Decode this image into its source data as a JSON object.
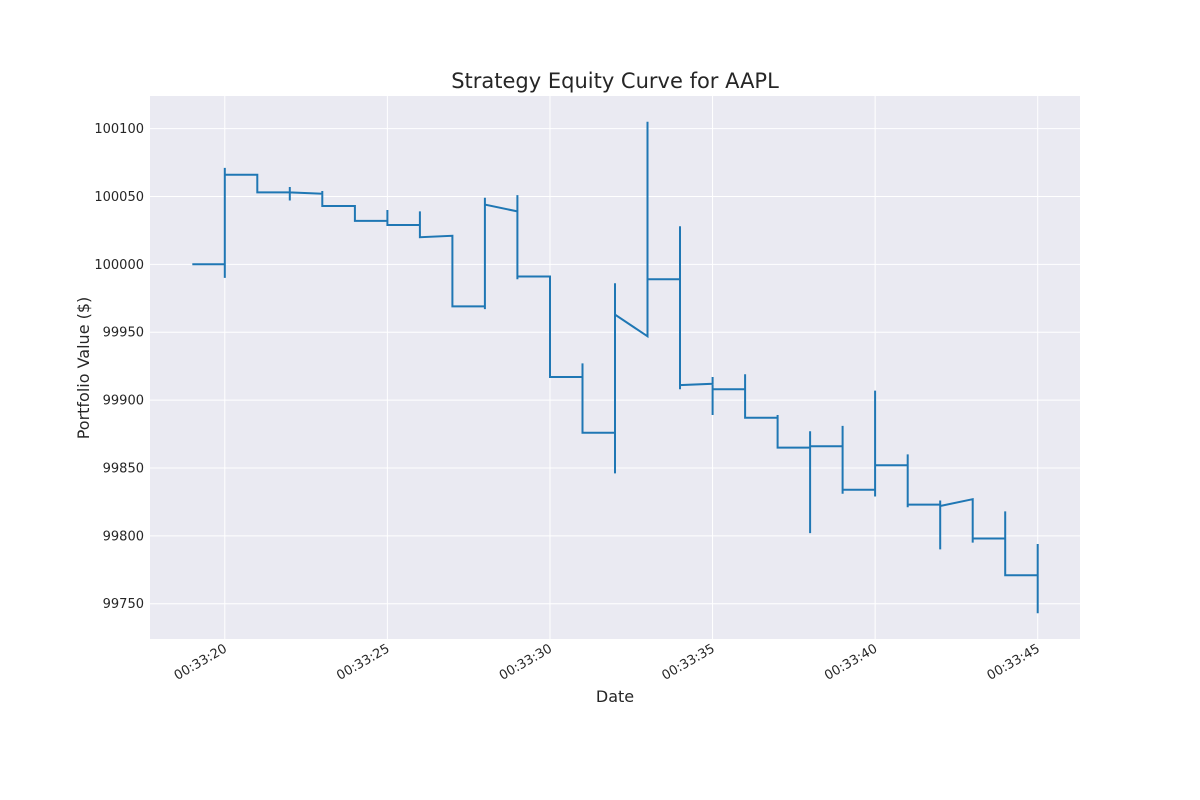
{
  "chart_data": {
    "type": "line",
    "title": "Strategy Equity Curve for AAPL",
    "xlabel": "Date",
    "ylabel": "Portfolio Value ($)",
    "x_tick_labels": [
      "00:33:20",
      "00:33:25",
      "00:33:30",
      "00:33:35",
      "00:33:40",
      "00:33:45"
    ],
    "y_tick_labels": [
      "100100",
      "100050",
      "100000",
      "99950",
      "99900",
      "99850",
      "99800",
      "99750"
    ],
    "y_ticks": [
      100100,
      100050,
      100000,
      99950,
      99900,
      99850,
      99800,
      99750
    ],
    "x_ticks": [
      "00:33:20",
      "00:33:25",
      "00:33:30",
      "00:33:35",
      "00:33:40",
      "00:33:45"
    ],
    "xlim": [
      "00:33:17.7",
      "00:33:46.3"
    ],
    "ylim": [
      99724,
      100124
    ],
    "grid": true,
    "legend": "none",
    "series": [
      {
        "color": "#1f77b4",
        "points": [
          [
            "00:33:19",
            100000
          ],
          [
            "00:33:20",
            100000
          ],
          [
            "00:33:20",
            99990
          ],
          [
            "00:33:20",
            100071
          ],
          [
            "00:33:20",
            100066
          ],
          [
            "00:33:21",
            100066
          ],
          [
            "00:33:21",
            100053
          ],
          [
            "00:33:22",
            100053
          ],
          [
            "00:33:22",
            100047
          ],
          [
            "00:33:22",
            100057
          ],
          [
            "00:33:22",
            100053
          ],
          [
            "00:33:23",
            100052
          ],
          [
            "00:33:23",
            100054
          ],
          [
            "00:33:23",
            100043
          ],
          [
            "00:33:24",
            100043
          ],
          [
            "00:33:24",
            100032
          ],
          [
            "00:33:25",
            100032
          ],
          [
            "00:33:25",
            100040
          ],
          [
            "00:33:25",
            100029
          ],
          [
            "00:33:26",
            100029
          ],
          [
            "00:33:26",
            100039
          ],
          [
            "00:33:26",
            100020
          ],
          [
            "00:33:27",
            100021
          ],
          [
            "00:33:27",
            99969
          ],
          [
            "00:33:28",
            99969
          ],
          [
            "00:33:28",
            99967
          ],
          [
            "00:33:28",
            100049
          ],
          [
            "00:33:28",
            100044
          ],
          [
            "00:33:29",
            100039
          ],
          [
            "00:33:29",
            100051
          ],
          [
            "00:33:29",
            99989
          ],
          [
            "00:33:29",
            99991
          ],
          [
            "00:33:30",
            99991
          ],
          [
            "00:33:30",
            99917
          ],
          [
            "00:33:31",
            99917
          ],
          [
            "00:33:31",
            99927
          ],
          [
            "00:33:31",
            99876
          ],
          [
            "00:33:32",
            99876
          ],
          [
            "00:33:32",
            99846
          ],
          [
            "00:33:32",
            99986
          ],
          [
            "00:33:32",
            99963
          ],
          [
            "00:33:33",
            99947
          ],
          [
            "00:33:33",
            100105
          ],
          [
            "00:33:33",
            99989
          ],
          [
            "00:33:34",
            99989
          ],
          [
            "00:33:34",
            100028
          ],
          [
            "00:33:34",
            99908
          ],
          [
            "00:33:34",
            99911
          ],
          [
            "00:33:35",
            99912
          ],
          [
            "00:33:35",
            99917
          ],
          [
            "00:33:35",
            99889
          ],
          [
            "00:33:35",
            99908
          ],
          [
            "00:33:36",
            99908
          ],
          [
            "00:33:36",
            99919
          ],
          [
            "00:33:36",
            99887
          ],
          [
            "00:33:37",
            99887
          ],
          [
            "00:33:37",
            99889
          ],
          [
            "00:33:37",
            99865
          ],
          [
            "00:33:38",
            99865
          ],
          [
            "00:33:38",
            99802
          ],
          [
            "00:33:38",
            99877
          ],
          [
            "00:33:38",
            99866
          ],
          [
            "00:33:39",
            99866
          ],
          [
            "00:33:39",
            99881
          ],
          [
            "00:33:39",
            99831
          ],
          [
            "00:33:39",
            99834
          ],
          [
            "00:33:40",
            99834
          ],
          [
            "00:33:40",
            99829
          ],
          [
            "00:33:40",
            99907
          ],
          [
            "00:33:40",
            99852
          ],
          [
            "00:33:41",
            99852
          ],
          [
            "00:33:41",
            99860
          ],
          [
            "00:33:41",
            99821
          ],
          [
            "00:33:41",
            99823
          ],
          [
            "00:33:42",
            99823
          ],
          [
            "00:33:42",
            99790
          ],
          [
            "00:33:42",
            99826
          ],
          [
            "00:33:42",
            99822
          ],
          [
            "00:33:43",
            99827
          ],
          [
            "00:33:43",
            99795
          ],
          [
            "00:33:43",
            99798
          ],
          [
            "00:33:44",
            99798
          ],
          [
            "00:33:44",
            99818
          ],
          [
            "00:33:44",
            99771
          ],
          [
            "00:33:45",
            99771
          ],
          [
            "00:33:45",
            99743
          ],
          [
            "00:33:45",
            99794
          ]
        ]
      }
    ]
  }
}
